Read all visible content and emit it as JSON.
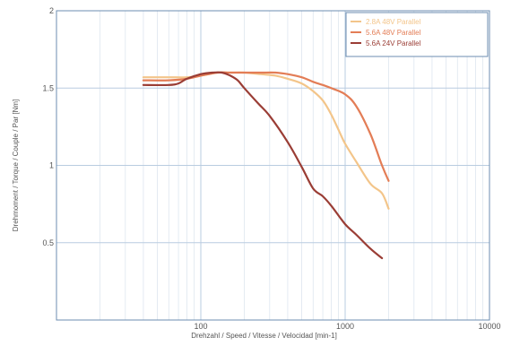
{
  "chart_data": {
    "type": "line",
    "title": "",
    "xlabel": "Drehzahl / Speed / Vitesse / Velocidad [min-1]",
    "ylabel": "Drehmoment / Torque / Couple / Par [Nm]",
    "x_scale": "log",
    "xlim": [
      10,
      10000
    ],
    "ylim": [
      0,
      2
    ],
    "x_ticks": [
      "100",
      "1000",
      "10000"
    ],
    "y_ticks": [
      "0.5",
      "1",
      "1.5",
      "2"
    ],
    "grid": true,
    "legend_position": "top-right",
    "series": [
      {
        "name": "2.8A 48V Parallel",
        "color": "#f3c58a",
        "x": [
          40,
          60,
          80,
          100,
          130,
          160,
          200,
          260,
          330,
          400,
          500,
          600,
          700,
          800,
          900,
          1000,
          1200,
          1500,
          1800,
          2000
        ],
        "y": [
          1.57,
          1.57,
          1.57,
          1.58,
          1.6,
          1.6,
          1.6,
          1.59,
          1.58,
          1.56,
          1.53,
          1.48,
          1.42,
          1.33,
          1.23,
          1.14,
          1.02,
          0.88,
          0.82,
          0.72
        ]
      },
      {
        "name": "5.6A 48V Parallel",
        "color": "#e37d56",
        "x": [
          40,
          60,
          80,
          100,
          130,
          160,
          200,
          260,
          330,
          400,
          500,
          600,
          700,
          800,
          1000,
          1200,
          1500,
          1800,
          2000
        ],
        "y": [
          1.55,
          1.55,
          1.56,
          1.58,
          1.6,
          1.6,
          1.6,
          1.6,
          1.6,
          1.59,
          1.57,
          1.54,
          1.52,
          1.5,
          1.46,
          1.38,
          1.2,
          1.0,
          0.9
        ]
      },
      {
        "name": "5.6A 24V Parallel",
        "color": "#9a3d35",
        "x": [
          40,
          60,
          70,
          80,
          100,
          120,
          140,
          160,
          180,
          200,
          250,
          300,
          400,
          500,
          600,
          700,
          800,
          1000,
          1200,
          1500,
          1800
        ],
        "y": [
          1.52,
          1.52,
          1.53,
          1.56,
          1.59,
          1.6,
          1.6,
          1.58,
          1.55,
          1.5,
          1.4,
          1.32,
          1.15,
          0.99,
          0.85,
          0.8,
          0.74,
          0.62,
          0.55,
          0.46,
          0.4
        ]
      }
    ]
  }
}
